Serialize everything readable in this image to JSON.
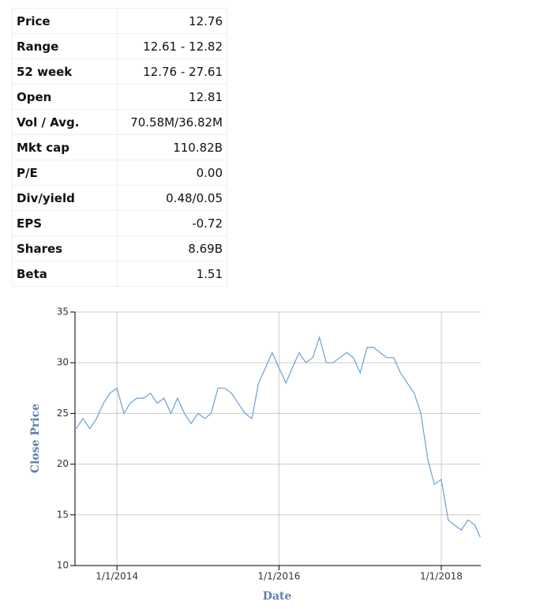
{
  "table": {
    "rows": [
      [
        "Price",
        "12.76"
      ],
      [
        "Range",
        "12.61 - 12.82"
      ],
      [
        "52 week",
        "12.76 - 27.61"
      ],
      [
        "Open",
        "12.81"
      ],
      [
        "Vol / Avg.",
        "70.58M/36.82M"
      ],
      [
        "Mkt cap",
        "110.82B"
      ],
      [
        "P/E",
        "0.00"
      ],
      [
        "Div/yield",
        "0.48/0.05"
      ],
      [
        "EPS",
        "-0.72"
      ],
      [
        "Shares",
        "8.69B"
      ],
      [
        "Beta",
        "1.51"
      ]
    ]
  },
  "chart_data": {
    "type": "line",
    "x_label": "Date",
    "y_label": "Close Price",
    "x": [
      "2013-07-01",
      "2013-08-01",
      "2013-09-01",
      "2013-10-01",
      "2013-11-01",
      "2013-12-01",
      "2014-01-01",
      "2014-02-01",
      "2014-03-01",
      "2014-04-01",
      "2014-05-01",
      "2014-06-01",
      "2014-07-01",
      "2014-08-01",
      "2014-09-01",
      "2014-10-01",
      "2014-11-01",
      "2014-12-01",
      "2015-01-01",
      "2015-02-01",
      "2015-03-01",
      "2015-04-01",
      "2015-05-01",
      "2015-06-01",
      "2015-07-01",
      "2015-08-01",
      "2015-09-01",
      "2015-10-01",
      "2015-11-01",
      "2015-12-01",
      "2016-01-01",
      "2016-02-01",
      "2016-03-01",
      "2016-04-01",
      "2016-05-01",
      "2016-06-01",
      "2016-07-01",
      "2016-08-01",
      "2016-09-01",
      "2016-10-01",
      "2016-11-01",
      "2016-12-01",
      "2017-01-01",
      "2017-02-01",
      "2017-03-01",
      "2017-04-01",
      "2017-05-01",
      "2017-06-01",
      "2017-07-01",
      "2017-08-01",
      "2017-09-01",
      "2017-10-01",
      "2017-11-01",
      "2017-12-01",
      "2018-01-01",
      "2018-02-01",
      "2018-03-01",
      "2018-04-01",
      "2018-05-01",
      "2018-06-01",
      "2018-06-25"
    ],
    "series": [
      {
        "name": "Close Price",
        "color": "#6a9fd8",
        "values": [
          23.5,
          24.5,
          23.5,
          24.5,
          26,
          27,
          27.5,
          25,
          26,
          26.5,
          26.5,
          27,
          26,
          26.5,
          25,
          26.5,
          25,
          24,
          25,
          24.5,
          25,
          27.5,
          27.5,
          27,
          26,
          25,
          24.5,
          28,
          29.5,
          31,
          29.5,
          28,
          29.5,
          31,
          30,
          30.5,
          32.5,
          30,
          30,
          30.5,
          31,
          30.5,
          29,
          31.5,
          31.5,
          31,
          30.5,
          30.5,
          29,
          28,
          27,
          25,
          20.5,
          18,
          18.5,
          14.5,
          14,
          13.5,
          14.5,
          14,
          12.8
        ]
      }
    ],
    "xlim": [
      "2013-06-26",
      "2018-06-28"
    ],
    "ylim": [
      10,
      35
    ],
    "xticks": [
      {
        "value": "2014-01-01",
        "label": "1/1/2014"
      },
      {
        "value": "2016-01-01",
        "label": "1/1/2016"
      },
      {
        "value": "2018-01-01",
        "label": "1/1/2018"
      }
    ],
    "yticks": [
      10,
      15,
      20,
      25,
      30,
      35
    ],
    "grid": true
  }
}
